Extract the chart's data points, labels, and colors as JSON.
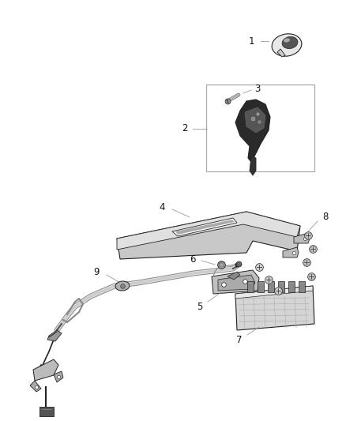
{
  "background_color": "#ffffff",
  "figsize": [
    4.38,
    5.33
  ],
  "dpi": 100,
  "label_fontsize": 8.5,
  "line_color": "#aaaaaa",
  "dark_color": "#222222",
  "mid_color": "#888888",
  "light_color": "#dddddd"
}
